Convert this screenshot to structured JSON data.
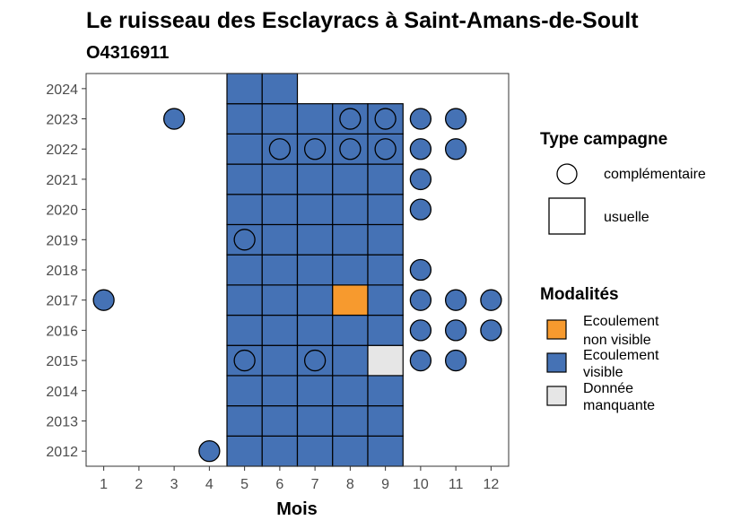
{
  "chart_data": {
    "type": "heatmap",
    "title": "Le ruisseau des Esclayracs à Saint-Amans-de-Soult",
    "subtitle": "O4316911",
    "xlabel": "Mois",
    "ylabel": "",
    "x_ticks": [
      1,
      2,
      3,
      4,
      5,
      6,
      7,
      8,
      9,
      10,
      11,
      12
    ],
    "y_ticks": [
      2012,
      2013,
      2014,
      2015,
      2016,
      2017,
      2018,
      2019,
      2020,
      2021,
      2022,
      2023,
      2024
    ],
    "xlim": [
      0.5,
      12.5
    ],
    "ylim": [
      2011.5,
      2024.5
    ],
    "colors": {
      "Ecoulement non visible": "#f79a2e",
      "Ecoulement visible": "#4572b5",
      "Donnée manquante": "#e6e6e6"
    },
    "legend": {
      "type_title": "Type campagne",
      "type_entries": [
        {
          "shape": "circle",
          "label": "complémentaire"
        },
        {
          "shape": "square",
          "label": "usuelle"
        }
      ],
      "modalite_title": "Modalités",
      "modalite_entries": [
        {
          "key": "Ecoulement non visible",
          "lines": [
            "Ecoulement",
            "non visible"
          ]
        },
        {
          "key": "Ecoulement visible",
          "lines": [
            "Ecoulement",
            "visible"
          ]
        },
        {
          "key": "Donnée manquante",
          "lines": [
            "Donnée",
            "manquante"
          ]
        }
      ]
    },
    "usuelle": [
      {
        "year": 2012,
        "month": 5,
        "modalite": "Ecoulement visible"
      },
      {
        "year": 2012,
        "month": 6,
        "modalite": "Ecoulement visible"
      },
      {
        "year": 2012,
        "month": 7,
        "modalite": "Ecoulement visible"
      },
      {
        "year": 2012,
        "month": 8,
        "modalite": "Ecoulement visible"
      },
      {
        "year": 2012,
        "month": 9,
        "modalite": "Ecoulement visible"
      },
      {
        "year": 2013,
        "month": 5,
        "modalite": "Ecoulement visible"
      },
      {
        "year": 2013,
        "month": 6,
        "modalite": "Ecoulement visible"
      },
      {
        "year": 2013,
        "month": 7,
        "modalite": "Ecoulement visible"
      },
      {
        "year": 2013,
        "month": 8,
        "modalite": "Ecoulement visible"
      },
      {
        "year": 2013,
        "month": 9,
        "modalite": "Ecoulement visible"
      },
      {
        "year": 2014,
        "month": 5,
        "modalite": "Ecoulement visible"
      },
      {
        "year": 2014,
        "month": 6,
        "modalite": "Ecoulement visible"
      },
      {
        "year": 2014,
        "month": 7,
        "modalite": "Ecoulement visible"
      },
      {
        "year": 2014,
        "month": 8,
        "modalite": "Ecoulement visible"
      },
      {
        "year": 2014,
        "month": 9,
        "modalite": "Ecoulement visible"
      },
      {
        "year": 2015,
        "month": 5,
        "modalite": "Ecoulement visible"
      },
      {
        "year": 2015,
        "month": 6,
        "modalite": "Ecoulement visible"
      },
      {
        "year": 2015,
        "month": 7,
        "modalite": "Ecoulement visible"
      },
      {
        "year": 2015,
        "month": 8,
        "modalite": "Ecoulement visible"
      },
      {
        "year": 2015,
        "month": 9,
        "modalite": "Donnée manquante"
      },
      {
        "year": 2016,
        "month": 5,
        "modalite": "Ecoulement visible"
      },
      {
        "year": 2016,
        "month": 6,
        "modalite": "Ecoulement visible"
      },
      {
        "year": 2016,
        "month": 7,
        "modalite": "Ecoulement visible"
      },
      {
        "year": 2016,
        "month": 8,
        "modalite": "Ecoulement visible"
      },
      {
        "year": 2016,
        "month": 9,
        "modalite": "Ecoulement visible"
      },
      {
        "year": 2017,
        "month": 5,
        "modalite": "Ecoulement visible"
      },
      {
        "year": 2017,
        "month": 6,
        "modalite": "Ecoulement visible"
      },
      {
        "year": 2017,
        "month": 7,
        "modalite": "Ecoulement visible"
      },
      {
        "year": 2017,
        "month": 8,
        "modalite": "Ecoulement non visible"
      },
      {
        "year": 2017,
        "month": 9,
        "modalite": "Ecoulement visible"
      },
      {
        "year": 2018,
        "month": 5,
        "modalite": "Ecoulement visible"
      },
      {
        "year": 2018,
        "month": 6,
        "modalite": "Ecoulement visible"
      },
      {
        "year": 2018,
        "month": 7,
        "modalite": "Ecoulement visible"
      },
      {
        "year": 2018,
        "month": 8,
        "modalite": "Ecoulement visible"
      },
      {
        "year": 2018,
        "month": 9,
        "modalite": "Ecoulement visible"
      },
      {
        "year": 2019,
        "month": 5,
        "modalite": "Ecoulement visible"
      },
      {
        "year": 2019,
        "month": 6,
        "modalite": "Ecoulement visible"
      },
      {
        "year": 2019,
        "month": 7,
        "modalite": "Ecoulement visible"
      },
      {
        "year": 2019,
        "month": 8,
        "modalite": "Ecoulement visible"
      },
      {
        "year": 2019,
        "month": 9,
        "modalite": "Ecoulement visible"
      },
      {
        "year": 2020,
        "month": 5,
        "modalite": "Ecoulement visible"
      },
      {
        "year": 2020,
        "month": 6,
        "modalite": "Ecoulement visible"
      },
      {
        "year": 2020,
        "month": 7,
        "modalite": "Ecoulement visible"
      },
      {
        "year": 2020,
        "month": 8,
        "modalite": "Ecoulement visible"
      },
      {
        "year": 2020,
        "month": 9,
        "modalite": "Ecoulement visible"
      },
      {
        "year": 2021,
        "month": 5,
        "modalite": "Ecoulement visible"
      },
      {
        "year": 2021,
        "month": 6,
        "modalite": "Ecoulement visible"
      },
      {
        "year": 2021,
        "month": 7,
        "modalite": "Ecoulement visible"
      },
      {
        "year": 2021,
        "month": 8,
        "modalite": "Ecoulement visible"
      },
      {
        "year": 2021,
        "month": 9,
        "modalite": "Ecoulement visible"
      },
      {
        "year": 2022,
        "month": 5,
        "modalite": "Ecoulement visible"
      },
      {
        "year": 2022,
        "month": 6,
        "modalite": "Ecoulement visible"
      },
      {
        "year": 2022,
        "month": 7,
        "modalite": "Ecoulement visible"
      },
      {
        "year": 2022,
        "month": 8,
        "modalite": "Ecoulement visible"
      },
      {
        "year": 2022,
        "month": 9,
        "modalite": "Ecoulement visible"
      },
      {
        "year": 2023,
        "month": 5,
        "modalite": "Ecoulement visible"
      },
      {
        "year": 2023,
        "month": 6,
        "modalite": "Ecoulement visible"
      },
      {
        "year": 2023,
        "month": 7,
        "modalite": "Ecoulement visible"
      },
      {
        "year": 2023,
        "month": 8,
        "modalite": "Ecoulement visible"
      },
      {
        "year": 2023,
        "month": 9,
        "modalite": "Ecoulement visible"
      },
      {
        "year": 2024,
        "month": 5,
        "modalite": "Ecoulement visible"
      },
      {
        "year": 2024,
        "month": 6,
        "modalite": "Ecoulement visible"
      }
    ],
    "complementaire": [
      {
        "year": 2012,
        "month": 4,
        "modalite": "Ecoulement visible"
      },
      {
        "year": 2015,
        "month": 5,
        "modalite": "Ecoulement visible"
      },
      {
        "year": 2015,
        "month": 7,
        "modalite": "Ecoulement visible"
      },
      {
        "year": 2015,
        "month": 10,
        "modalite": "Ecoulement visible"
      },
      {
        "year": 2015,
        "month": 11,
        "modalite": "Ecoulement visible"
      },
      {
        "year": 2016,
        "month": 10,
        "modalite": "Ecoulement visible"
      },
      {
        "year": 2016,
        "month": 11,
        "modalite": "Ecoulement visible"
      },
      {
        "year": 2016,
        "month": 12,
        "modalite": "Ecoulement visible"
      },
      {
        "year": 2017,
        "month": 1,
        "modalite": "Ecoulement visible"
      },
      {
        "year": 2017,
        "month": 10,
        "modalite": "Ecoulement visible"
      },
      {
        "year": 2017,
        "month": 11,
        "modalite": "Ecoulement visible"
      },
      {
        "year": 2017,
        "month": 12,
        "modalite": "Ecoulement visible"
      },
      {
        "year": 2018,
        "month": 10,
        "modalite": "Ecoulement visible"
      },
      {
        "year": 2019,
        "month": 5,
        "modalite": "Ecoulement visible"
      },
      {
        "year": 2020,
        "month": 10,
        "modalite": "Ecoulement visible"
      },
      {
        "year": 2021,
        "month": 10,
        "modalite": "Ecoulement visible"
      },
      {
        "year": 2022,
        "month": 6,
        "modalite": "Ecoulement visible"
      },
      {
        "year": 2022,
        "month": 7,
        "modalite": "Ecoulement visible"
      },
      {
        "year": 2022,
        "month": 8,
        "modalite": "Ecoulement visible"
      },
      {
        "year": 2022,
        "month": 9,
        "modalite": "Ecoulement visible"
      },
      {
        "year": 2022,
        "month": 10,
        "modalite": "Ecoulement visible"
      },
      {
        "year": 2022,
        "month": 11,
        "modalite": "Ecoulement visible"
      },
      {
        "year": 2023,
        "month": 3,
        "modalite": "Ecoulement visible"
      },
      {
        "year": 2023,
        "month": 8,
        "modalite": "Ecoulement visible"
      },
      {
        "year": 2023,
        "month": 9,
        "modalite": "Ecoulement visible"
      },
      {
        "year": 2023,
        "month": 10,
        "modalite": "Ecoulement visible"
      },
      {
        "year": 2023,
        "month": 11,
        "modalite": "Ecoulement visible"
      }
    ]
  }
}
